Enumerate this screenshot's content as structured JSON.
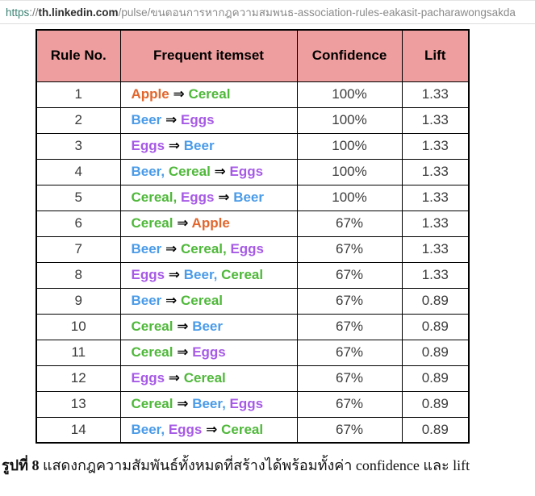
{
  "address_bar": {
    "protocol": "https",
    "separator": "://",
    "domain": "th.linkedin.com",
    "path": "/pulse/ขนตอนการหากฎความสมพนธ-association-rules-eakasit-pacharawongsakda"
  },
  "table": {
    "headers": [
      "Rule No.",
      "Frequent itemset",
      "Confidence",
      "Lift"
    ],
    "header_bg": "#ee9e9e",
    "arrow": "⇒",
    "item_colors": {
      "Apple": "#e2662c",
      "Cereal": "#4fb83a",
      "Beer": "#4a9be8",
      "Eggs": "#a65ae6"
    },
    "rows": [
      {
        "no": "1",
        "antecedent": [
          "Apple"
        ],
        "consequent": [
          "Cereal"
        ],
        "confidence": "100%",
        "lift": "1.33"
      },
      {
        "no": "2",
        "antecedent": [
          "Beer"
        ],
        "consequent": [
          "Eggs"
        ],
        "confidence": "100%",
        "lift": "1.33"
      },
      {
        "no": "3",
        "antecedent": [
          "Eggs"
        ],
        "consequent": [
          "Beer"
        ],
        "confidence": "100%",
        "lift": "1.33"
      },
      {
        "no": "4",
        "antecedent": [
          "Beer",
          "Cereal"
        ],
        "consequent": [
          "Eggs"
        ],
        "confidence": "100%",
        "lift": "1.33"
      },
      {
        "no": "5",
        "antecedent": [
          "Cereal",
          "Eggs"
        ],
        "consequent": [
          "Beer"
        ],
        "confidence": "100%",
        "lift": "1.33"
      },
      {
        "no": "6",
        "antecedent": [
          "Cereal"
        ],
        "consequent": [
          "Apple"
        ],
        "confidence": "67%",
        "lift": "1.33"
      },
      {
        "no": "7",
        "antecedent": [
          "Beer"
        ],
        "consequent": [
          "Cereal",
          "Eggs"
        ],
        "confidence": "67%",
        "lift": "1.33"
      },
      {
        "no": "8",
        "antecedent": [
          "Eggs"
        ],
        "consequent": [
          "Beer",
          "Cereal"
        ],
        "confidence": "67%",
        "lift": "1.33"
      },
      {
        "no": "9",
        "antecedent": [
          "Beer"
        ],
        "consequent": [
          "Cereal"
        ],
        "confidence": "67%",
        "lift": "0.89"
      },
      {
        "no": "10",
        "antecedent": [
          "Cereal"
        ],
        "consequent": [
          "Beer"
        ],
        "confidence": "67%",
        "lift": "0.89"
      },
      {
        "no": "11",
        "antecedent": [
          "Cereal"
        ],
        "consequent": [
          "Eggs"
        ],
        "confidence": "67%",
        "lift": "0.89"
      },
      {
        "no": "12",
        "antecedent": [
          "Eggs"
        ],
        "consequent": [
          "Cereal"
        ],
        "confidence": "67%",
        "lift": "0.89"
      },
      {
        "no": "13",
        "antecedent": [
          "Cereal"
        ],
        "consequent": [
          "Beer",
          "Eggs"
        ],
        "confidence": "67%",
        "lift": "0.89"
      },
      {
        "no": "14",
        "antecedent": [
          "Beer",
          "Eggs"
        ],
        "consequent": [
          "Cereal"
        ],
        "confidence": "67%",
        "lift": "0.89"
      }
    ]
  },
  "caption": {
    "label": "รูปที่ 8",
    "text": " แสดงกฎความสัมพันธ์ทั้งหมดที่สร้างได้พร้อมทั้งค่า confidence และ lift"
  }
}
